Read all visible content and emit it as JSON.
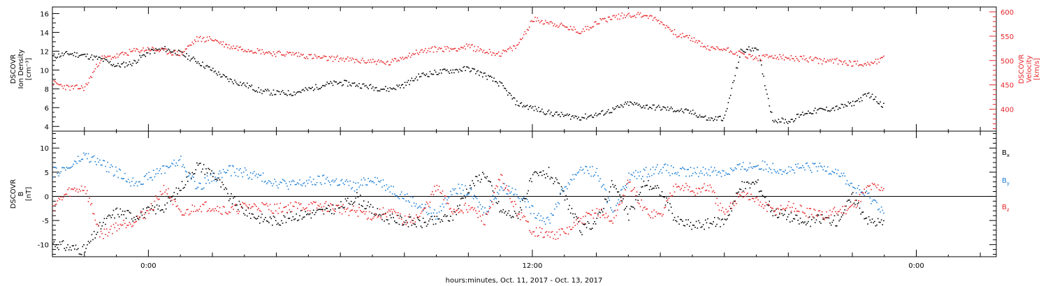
{
  "chart_data": [
    {
      "type": "scatter",
      "panel": "top",
      "xlabel": "hours:minutes, Oct. 11, 2017 - Oct. 13, 2017",
      "x_ticks": [
        "0:00",
        "12:00",
        "0:00"
      ],
      "x_range_hours": [
        -3,
        26.5
      ],
      "ylabel_left": [
        "DSCOVR",
        "Ion Density",
        "[cm⁻³]"
      ],
      "ylabel_right": [
        "DSCOVR",
        "Velocity",
        "[km/s]"
      ],
      "y_left_ticks": [
        "4",
        "6",
        "8",
        "10",
        "12",
        "14",
        "16"
      ],
      "y_left_range": [
        3.5,
        16.7
      ],
      "y_right_ticks": [
        "400",
        "450",
        "500",
        "550",
        "600"
      ],
      "y_right_range": [
        355,
        610
      ],
      "series": [
        {
          "axis": "left",
          "color": "#000000",
          "x": [
            -3.0,
            -2.5,
            -2.0,
            -1.5,
            -1.0,
            -0.5,
            0.0,
            0.5,
            1.0,
            1.5,
            2.0,
            2.5,
            3.0,
            3.5,
            4.0,
            4.5,
            5.0,
            5.5,
            6.0,
            6.5,
            7.0,
            7.5,
            8.0,
            8.5,
            9.0,
            9.5,
            10.0,
            10.5,
            11.0,
            11.5,
            12.0,
            12.5,
            13.0,
            13.5,
            14.0,
            14.5,
            15.0,
            15.5,
            16.0,
            16.5,
            17.0,
            17.5,
            18.0,
            18.5,
            19.0,
            19.5,
            20.0,
            20.5,
            21.0,
            21.5,
            22.0,
            22.5,
            23.0
          ],
          "y": [
            11.5,
            11.8,
            11.6,
            11.2,
            10.5,
            10.8,
            12.0,
            12.3,
            11.8,
            11.0,
            10.0,
            9.0,
            8.5,
            7.8,
            7.6,
            7.6,
            8.0,
            8.5,
            8.7,
            8.5,
            8.2,
            8.0,
            8.5,
            9.5,
            9.8,
            10.0,
            10.2,
            9.5,
            8.5,
            6.5,
            6.0,
            5.5,
            5.2,
            5.0,
            5.3,
            5.8,
            6.5,
            6.2,
            6.0,
            5.8,
            5.5,
            4.8,
            5.0,
            12.0,
            12.5,
            4.8,
            4.6,
            5.5,
            5.8,
            6.0,
            6.5,
            7.5,
            6.2
          ]
        },
        {
          "axis": "right",
          "color": "#e8262a",
          "x": [
            -3.0,
            -2.5,
            -2.0,
            -1.5,
            -1.0,
            -0.5,
            0.0,
            0.5,
            1.0,
            1.5,
            2.0,
            2.5,
            3.0,
            3.5,
            4.0,
            4.5,
            5.0,
            5.5,
            6.0,
            6.5,
            7.0,
            7.5,
            8.0,
            8.5,
            9.0,
            9.5,
            10.0,
            10.5,
            11.0,
            11.5,
            12.0,
            12.5,
            13.0,
            13.5,
            14.0,
            14.5,
            15.0,
            15.5,
            16.0,
            16.5,
            17.0,
            17.5,
            18.0,
            18.5,
            19.0,
            19.5,
            20.0,
            20.5,
            21.0,
            21.5,
            22.0,
            22.5,
            23.0
          ],
          "y": [
            455,
            445,
            445,
            505,
            510,
            520,
            525,
            520,
            515,
            545,
            545,
            530,
            525,
            520,
            515,
            515,
            510,
            505,
            505,
            500,
            500,
            495,
            510,
            520,
            525,
            525,
            530,
            520,
            515,
            530,
            585,
            580,
            570,
            560,
            580,
            590,
            595,
            595,
            580,
            555,
            545,
            525,
            525,
            515,
            505,
            510,
            505,
            505,
            500,
            500,
            495,
            495,
            505
          ]
        }
      ]
    },
    {
      "type": "scatter",
      "panel": "bottom",
      "ylabel": [
        "DSCOVR",
        "B",
        "[nT]"
      ],
      "y_ticks": [
        "-10",
        "-5",
        "0",
        "5",
        "10"
      ],
      "y_range": [
        -12.5,
        13.5
      ],
      "zero_line": true,
      "legend_placement": "right",
      "series": [
        {
          "name": "Bx",
          "name_base": "B",
          "name_sub": "x",
          "color": "#000000",
          "x": [
            -3.0,
            -2.5,
            -2.0,
            -1.5,
            -1.0,
            -0.5,
            0.0,
            0.5,
            1.0,
            1.5,
            2.0,
            2.5,
            3.0,
            3.5,
            4.0,
            4.5,
            5.0,
            5.5,
            6.0,
            6.5,
            7.0,
            7.5,
            8.0,
            8.5,
            9.0,
            9.5,
            10.0,
            10.5,
            11.0,
            11.5,
            12.0,
            12.5,
            13.0,
            13.5,
            14.0,
            14.5,
            15.0,
            15.5,
            16.0,
            16.5,
            17.0,
            17.5,
            18.0,
            18.5,
            19.0,
            19.5,
            20.0,
            20.5,
            21.0,
            21.5,
            22.0,
            22.5,
            23.0
          ],
          "y": [
            -9.5,
            -10.5,
            -11.0,
            -6.0,
            -3.0,
            -4.0,
            -3.0,
            -2.0,
            2.0,
            6.5,
            5.0,
            0.0,
            -3.0,
            -4.5,
            -5.0,
            -4.0,
            -3.5,
            -3.0,
            -2.0,
            0.0,
            -3.0,
            -4.5,
            -5.0,
            -5.5,
            -5.0,
            -4.0,
            2.0,
            5.0,
            -3.0,
            -4.0,
            4.0,
            5.0,
            0.0,
            -7.0,
            -5.0,
            3.0,
            -4.0,
            3.0,
            1.0,
            -5.0,
            -6.0,
            -5.5,
            -5.0,
            2.0,
            3.0,
            -3.0,
            -4.0,
            -5.5,
            -4.5,
            -5.0,
            0.0,
            -5.0,
            -5.5
          ]
        },
        {
          "name": "By",
          "name_base": "B",
          "name_sub": "y",
          "color": "#1e7fd6",
          "x": [
            -3.0,
            -2.5,
            -2.0,
            -1.5,
            -1.0,
            -0.5,
            0.0,
            0.5,
            1.0,
            1.5,
            2.0,
            2.5,
            3.0,
            3.5,
            4.0,
            4.5,
            5.0,
            5.5,
            6.0,
            6.5,
            7.0,
            7.5,
            8.0,
            8.5,
            9.0,
            9.5,
            10.0,
            10.5,
            11.0,
            11.5,
            12.0,
            12.5,
            13.0,
            13.5,
            14.0,
            14.5,
            15.0,
            15.5,
            16.0,
            16.5,
            17.0,
            17.5,
            18.0,
            18.5,
            19.0,
            19.5,
            20.0,
            20.5,
            21.0,
            21.5,
            22.0,
            22.5,
            23.0
          ],
          "y": [
            5.0,
            6.0,
            8.5,
            7.0,
            5.0,
            3.0,
            4.0,
            6.0,
            7.5,
            2.0,
            4.0,
            5.5,
            5.0,
            4.0,
            3.0,
            2.5,
            3.0,
            3.5,
            3.0,
            2.0,
            4.0,
            2.0,
            0.0,
            -2.0,
            -4.0,
            2.0,
            1.0,
            -3.0,
            2.0,
            1.0,
            -3.0,
            -5.0,
            2.0,
            6.0,
            5.0,
            -3.0,
            4.0,
            5.0,
            6.0,
            5.0,
            5.0,
            5.5,
            5.0,
            6.0,
            6.5,
            6.0,
            5.5,
            6.0,
            6.0,
            5.5,
            2.0,
            0.0,
            -3.0
          ]
        },
        {
          "name": "Bz",
          "name_base": "B",
          "name_sub": "z",
          "color": "#e8262a",
          "x": [
            -3.0,
            -2.5,
            -2.0,
            -1.5,
            -1.0,
            -0.5,
            0.0,
            0.5,
            1.0,
            1.5,
            2.0,
            2.5,
            3.0,
            3.5,
            4.0,
            4.5,
            5.0,
            5.5,
            6.0,
            6.5,
            7.0,
            7.5,
            8.0,
            8.5,
            9.0,
            9.5,
            10.0,
            10.5,
            11.0,
            11.5,
            12.0,
            12.5,
            13.0,
            13.5,
            14.0,
            14.5,
            15.0,
            15.5,
            16.0,
            16.5,
            17.0,
            17.5,
            18.0,
            18.5,
            19.0,
            19.5,
            20.0,
            20.5,
            21.0,
            21.5,
            22.0,
            22.5,
            23.0
          ],
          "y": [
            -2.0,
            1.0,
            2.0,
            -8.0,
            -6.0,
            -5.0,
            -3.0,
            2.0,
            -4.0,
            -2.0,
            -2.0,
            -3.0,
            -2.0,
            -2.0,
            -2.5,
            -2.0,
            -2.0,
            -2.0,
            -2.5,
            -3.0,
            -4.0,
            -3.0,
            -5.0,
            -4.0,
            2.0,
            -3.0,
            -2.0,
            -5.0,
            4.0,
            -3.0,
            -7.0,
            -8.0,
            -7.5,
            -5.0,
            -3.0,
            -5.0,
            3.0,
            -3.0,
            -4.0,
            3.0,
            1.0,
            2.0,
            -4.0,
            1.0,
            -1.0,
            -3.0,
            -2.0,
            -3.0,
            -4.0,
            -3.0,
            -2.0,
            2.0,
            2.0
          ]
        }
      ]
    }
  ]
}
